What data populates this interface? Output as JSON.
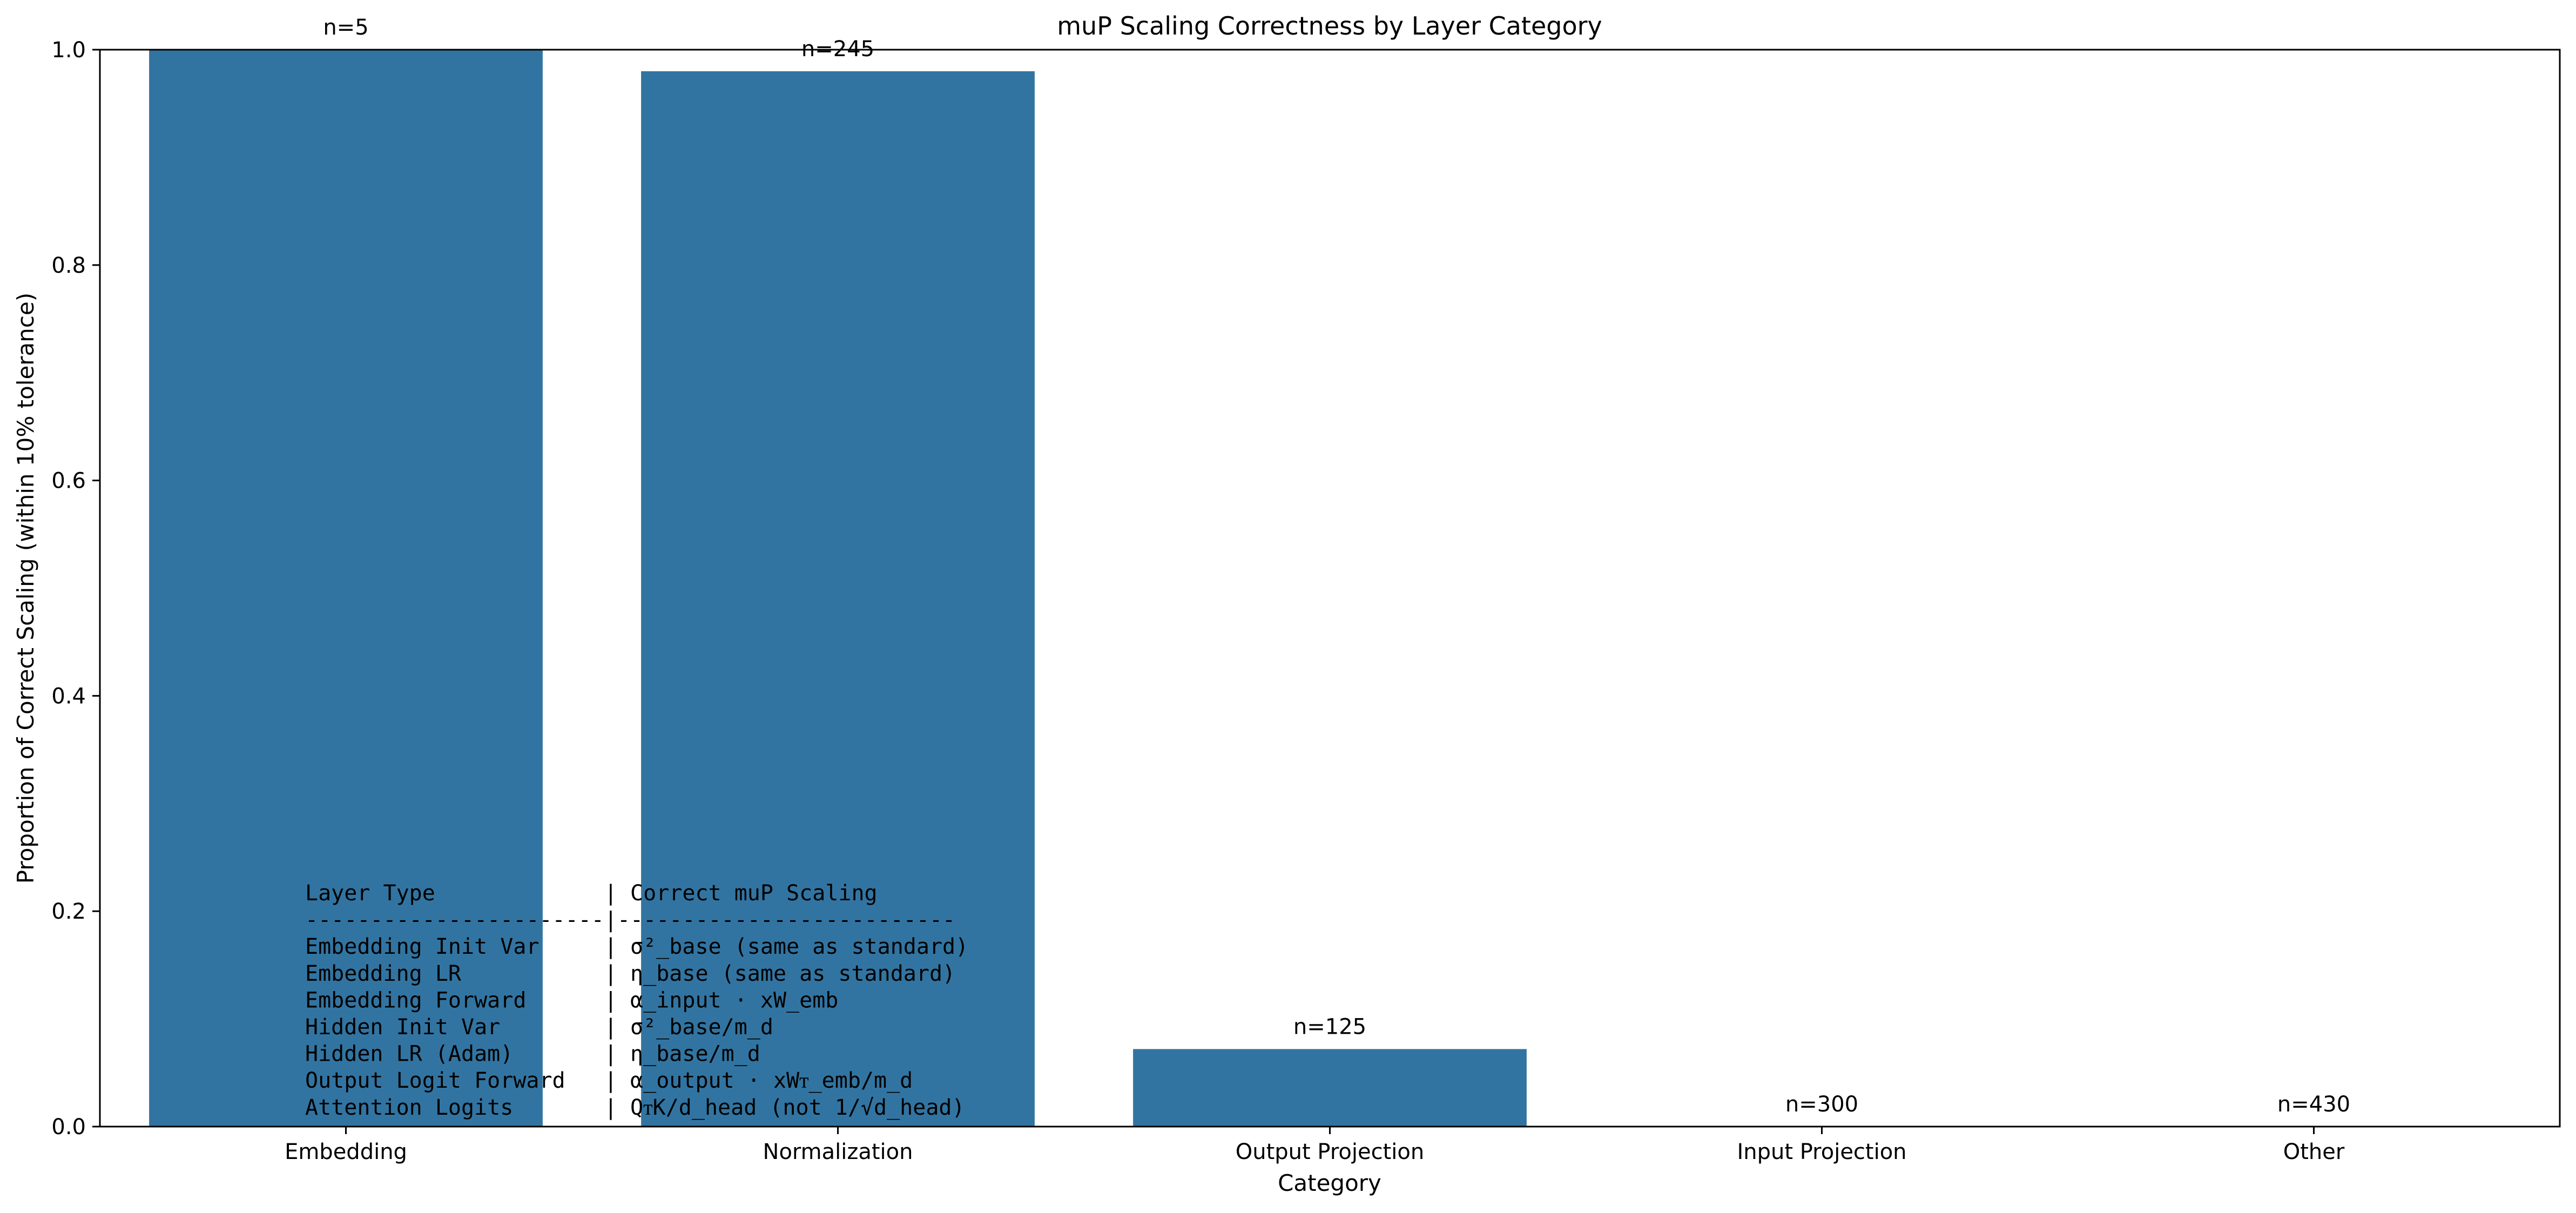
{
  "chart_data": {
    "type": "bar",
    "title": "muP Scaling Correctness by Layer Category",
    "xlabel": "Category",
    "ylabel": "Proportion of Correct Scaling (within 10% tolerance)",
    "categories": [
      "Embedding",
      "Normalization",
      "Output Projection",
      "Input Projection",
      "Other"
    ],
    "values": [
      1.0,
      0.98,
      0.072,
      0.0,
      0.0
    ],
    "bar_labels": [
      "n=5",
      "n=245",
      "n=125",
      "n=300",
      "n=430"
    ],
    "ylim": [
      0,
      1.0
    ],
    "yticks": [
      0.0,
      0.2,
      0.4,
      0.6,
      0.8,
      1.0
    ],
    "ytick_labels": [
      "0.0",
      "0.2",
      "0.4",
      "0.6",
      "0.8",
      "1.0"
    ],
    "bar_color": "#3274a1",
    "grid": false,
    "legend": "none",
    "annotation_table": [
      "Layer Type             | Correct muP Scaling",
      "-----------------------|--------------------------",
      "Embedding Init Var     | σ²_base (same as standard)",
      "Embedding LR           | η_base (same as standard)",
      "Embedding Forward      | α_input · xW_emb",
      "Hidden Init Var        | σ²_base/m_d",
      "Hidden LR (Adam)       | η_base/m_d",
      "Output Logit Forward   | α_output · xWᴛ_emb/m_d",
      "Attention Logits       | QᴛK/d_head (not 1/√d_head)"
    ]
  }
}
